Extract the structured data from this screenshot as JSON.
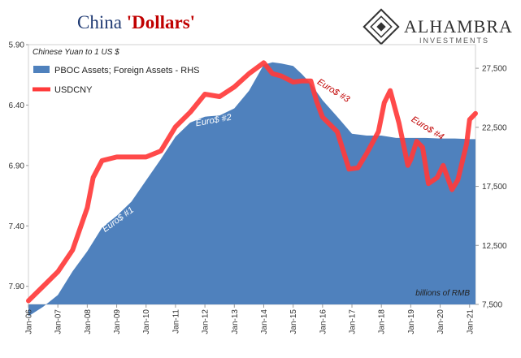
{
  "chart_data": {
    "type": "line",
    "title_part1": "China ",
    "title_part2": "'Dollars'",
    "subtitle": "Chinese Yuan to 1 US $",
    "left_axis": {
      "ticks": [
        "5.90",
        "6.40",
        "6.90",
        "7.40",
        "7.90"
      ],
      "range": [
        8.05,
        5.9
      ],
      "inverted": true
    },
    "right_axis": {
      "ticks": [
        "27,500",
        "22,500",
        "17,500",
        "12,500",
        "7,500"
      ],
      "range": [
        7500,
        29500
      ]
    },
    "x_ticks": [
      "Jan-06",
      "Jan-07",
      "Jan-08",
      "Jan-09",
      "Jan-10",
      "Jan-11",
      "Jan-12",
      "Jan-13",
      "Jan-14",
      "Jan-15",
      "Jan-16",
      "Jan-17",
      "Jan-18",
      "Jan-19",
      "Jan-20",
      "Jan-21"
    ],
    "x_range": [
      2006.0,
      2021.2
    ],
    "unit_note": "billions of RMB",
    "legend": [
      {
        "label": "PBOC Assets; Foreign Assets - RHS",
        "color": "#4f81bd"
      },
      {
        "label": "USDCNY",
        "color": "#ff3b3b"
      }
    ],
    "series": [
      {
        "name": "PBOC Assets; Foreign Assets - RHS",
        "axis": "right",
        "color": "#4f81bd",
        "x": [
          2006.0,
          2006.5,
          2007.0,
          2007.5,
          2008.0,
          2008.5,
          2009.0,
          2009.5,
          2010.0,
          2010.5,
          2011.0,
          2011.5,
          2012.0,
          2012.5,
          2013.0,
          2013.5,
          2014.0,
          2014.3,
          2014.6,
          2015.0,
          2015.3,
          2015.6,
          2016.0,
          2016.5,
          2017.0,
          2017.5,
          2018.0,
          2018.5,
          2019.0,
          2019.5,
          2020.0,
          2020.5,
          2021.0,
          2021.2
        ],
        "y": [
          6500,
          7300,
          8300,
          10300,
          12000,
          14000,
          15000,
          16200,
          18000,
          19800,
          21700,
          22900,
          23400,
          23500,
          24100,
          25600,
          27800,
          28000,
          27900,
          27700,
          27000,
          26200,
          24800,
          23400,
          21950,
          21800,
          21800,
          21600,
          21600,
          21600,
          21550,
          21550,
          21500,
          21500
        ]
      },
      {
        "name": "USDCNY",
        "axis": "left",
        "color": "#ff3b3b",
        "x": [
          2006.0,
          2006.5,
          2007.0,
          2007.5,
          2008.0,
          2008.2,
          2008.5,
          2009.0,
          2009.5,
          2010.0,
          2010.5,
          2011.0,
          2011.5,
          2012.0,
          2012.5,
          2013.0,
          2013.5,
          2014.0,
          2014.3,
          2014.6,
          2015.0,
          2015.3,
          2015.6,
          2015.8,
          2016.0,
          2016.5,
          2016.9,
          2017.2,
          2017.5,
          2017.9,
          2018.1,
          2018.3,
          2018.6,
          2018.9,
          2019.0,
          2019.2,
          2019.4,
          2019.6,
          2019.9,
          2020.1,
          2020.4,
          2020.6,
          2020.9,
          2021.0,
          2021.2
        ],
        "y": [
          8.02,
          7.9,
          7.78,
          7.6,
          7.25,
          7.0,
          6.86,
          6.83,
          6.83,
          6.83,
          6.78,
          6.58,
          6.46,
          6.31,
          6.33,
          6.25,
          6.14,
          6.05,
          6.14,
          6.16,
          6.21,
          6.2,
          6.2,
          6.37,
          6.5,
          6.62,
          6.93,
          6.92,
          6.8,
          6.62,
          6.38,
          6.28,
          6.55,
          6.9,
          6.85,
          6.7,
          6.75,
          7.05,
          7.0,
          6.9,
          7.1,
          7.02,
          6.72,
          6.52,
          6.47
        ]
      }
    ],
    "annotations": [
      {
        "text": "Euro$ #1",
        "x": 2008.6,
        "value": 13600,
        "axis": "right",
        "color": "#ffffff",
        "rotate": -36
      },
      {
        "text": "Euro$ #2",
        "x": 2011.7,
        "value": 22600,
        "axis": "right",
        "color": "#ffffff",
        "rotate": -10
      },
      {
        "text": "Euro$ #3",
        "x": 2015.8,
        "value": 6.22,
        "axis": "left",
        "color": "#c00000",
        "rotate": 32
      },
      {
        "text": "Euro$ #4",
        "x": 2019.0,
        "value": 6.53,
        "axis": "left",
        "color": "#c00000",
        "rotate": 32
      }
    ]
  },
  "logo": {
    "name": "ALHAMBRA",
    "tagline": "INVESTMENTS"
  }
}
